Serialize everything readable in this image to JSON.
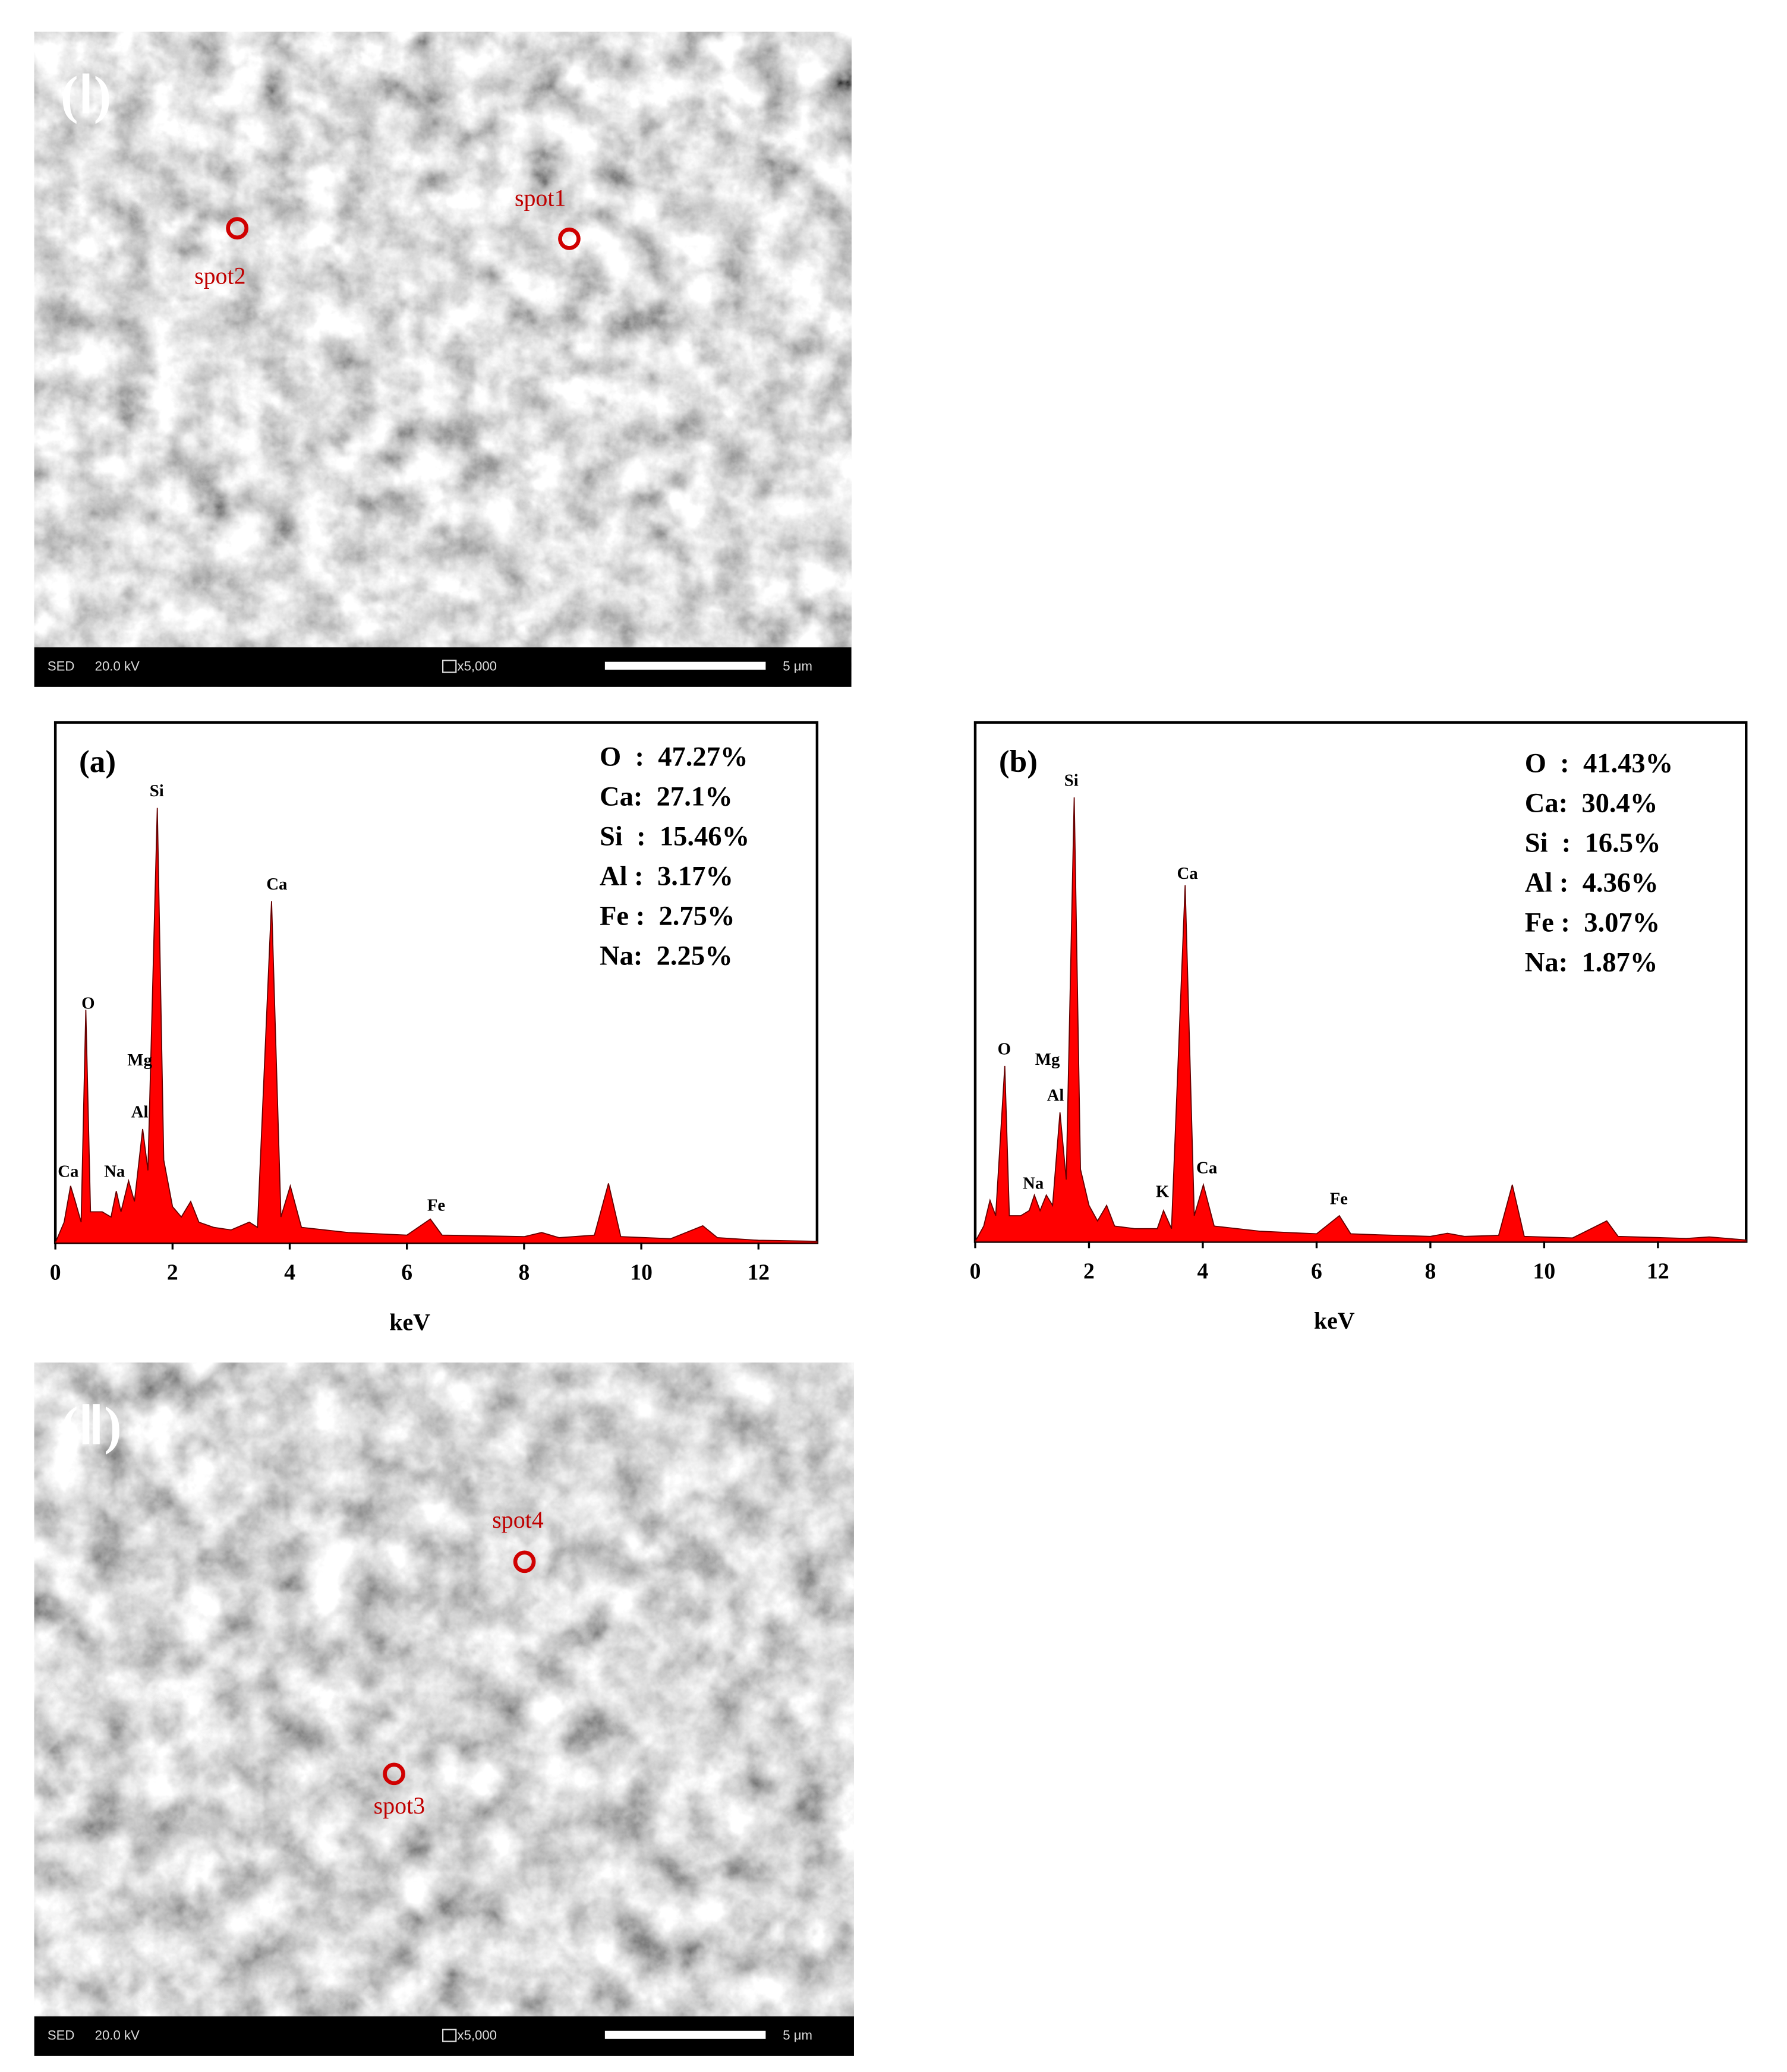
{
  "images": [
    {
      "label": "(Ⅰ)",
      "info": [
        "SED",
        "20.0 kV",
        "x5,000",
        "5 μm"
      ],
      "spots": [
        {
          "text": "spot1"
        },
        {
          "text": "spot2"
        }
      ]
    },
    {
      "label": "(Ⅱ)",
      "info": [
        "SED",
        "20.0 kV",
        "x5,000",
        "5 μm"
      ],
      "spots": [
        {
          "text": "spot4"
        },
        {
          "text": "spot3"
        }
      ]
    }
  ],
  "chart_data": [
    {
      "type": "area",
      "title": "(a)",
      "x_label": "keV",
      "color": "#ff0000",
      "xlim": [
        0,
        13
      ],
      "ylim": [
        0,
        100
      ],
      "xticks": [
        0,
        2,
        4,
        6,
        8,
        10,
        12
      ],
      "x": [
        0,
        0.15,
        0.26,
        0.34,
        0.44,
        0.52,
        0.6,
        0.8,
        0.95,
        1.04,
        1.12,
        1.25,
        1.35,
        1.49,
        1.58,
        1.74,
        1.85,
        2.0,
        2.15,
        2.31,
        2.45,
        2.7,
        3.0,
        3.31,
        3.45,
        3.69,
        3.85,
        4.01,
        4.2,
        5.0,
        6.0,
        6.4,
        6.6,
        8.0,
        8.3,
        8.6,
        9.2,
        9.44,
        9.65,
        10.5,
        11.05,
        11.3,
        12.0,
        13.0
      ],
      "values": [
        0,
        4,
        11,
        8,
        4,
        45,
        6,
        6,
        5,
        10,
        6,
        12,
        8,
        22,
        14,
        84,
        16,
        7,
        5,
        8,
        4,
        3,
        2.5,
        4,
        3,
        66,
        5,
        11,
        3,
        2,
        1.5,
        4.6,
        1.5,
        1.2,
        2,
        1,
        1.5,
        11.5,
        1.2,
        0.8,
        3.3,
        1,
        0.5,
        0.3
      ],
      "peak_labels": [
        {
          "text": "Ca",
          "x": 0.22,
          "y": 13.5
        },
        {
          "text": "O",
          "x": 0.56,
          "y": 46
        },
        {
          "text": "Na",
          "x": 1.01,
          "y": 13.5
        },
        {
          "text": "Al",
          "x": 1.44,
          "y": 25
        },
        {
          "text": "Mg",
          "x": 1.44,
          "y": 35
        },
        {
          "text": "Si",
          "x": 1.73,
          "y": 87
        },
        {
          "text": "Ca",
          "x": 3.78,
          "y": 69
        },
        {
          "text": "Fe",
          "x": 6.5,
          "y": 7
        }
      ],
      "composition": [
        "O  :  47.27%",
        "Ca:  27.1%",
        "Si  :  15.46%",
        "Al :  3.17%",
        "Fe :  2.75%",
        "Na:  2.25%"
      ]
    },
    {
      "type": "area",
      "title": "(b)",
      "x_label": "keV",
      "color": "#ff0000",
      "xlim": [
        0,
        13.55
      ],
      "ylim": [
        0,
        100
      ],
      "xticks": [
        0,
        2,
        4,
        6,
        8,
        10,
        12
      ],
      "x": [
        0,
        0.15,
        0.26,
        0.36,
        0.52,
        0.6,
        0.8,
        0.95,
        1.04,
        1.14,
        1.25,
        1.36,
        1.49,
        1.6,
        1.74,
        1.85,
        2.0,
        2.15,
        2.31,
        2.45,
        2.8,
        3.2,
        3.31,
        3.45,
        3.69,
        3.85,
        4.01,
        4.2,
        5,
        6,
        6.4,
        6.6,
        7.1,
        8,
        8.3,
        8.6,
        9.2,
        9.44,
        9.65,
        10.5,
        11.1,
        11.3,
        12.5,
        12.9,
        13.55
      ],
      "values": [
        0,
        3,
        8,
        5,
        34,
        5,
        5,
        6,
        9,
        6,
        9,
        7,
        25,
        12,
        86,
        14,
        7,
        4,
        7,
        3,
        2.5,
        2.5,
        6,
        2.5,
        69,
        5,
        11,
        3,
        2,
        1.5,
        5,
        1.5,
        1.3,
        1,
        1.6,
        1,
        1.2,
        11,
        1,
        0.7,
        4,
        1,
        0.6,
        0.9,
        0.3
      ],
      "peak_labels": [
        {
          "text": "O",
          "x": 0.51,
          "y": 37
        },
        {
          "text": "Na",
          "x": 1.02,
          "y": 11
        },
        {
          "text": "Al",
          "x": 1.41,
          "y": 28
        },
        {
          "text": "Mg",
          "x": 1.27,
          "y": 35
        },
        {
          "text": "Si",
          "x": 1.69,
          "y": 89
        },
        {
          "text": "Ca",
          "x": 3.73,
          "y": 71
        },
        {
          "text": "K",
          "x": 3.29,
          "y": 9.4
        },
        {
          "text": "Ca",
          "x": 4.07,
          "y": 14
        },
        {
          "text": "Fe",
          "x": 6.39,
          "y": 8
        }
      ],
      "composition": [
        "O  :  41.43%",
        "Ca:  30.4%",
        "Si  :  16.5%",
        "Al :  4.36%",
        "Fe :  3.07%",
        "Na:  1.87%"
      ]
    }
  ]
}
